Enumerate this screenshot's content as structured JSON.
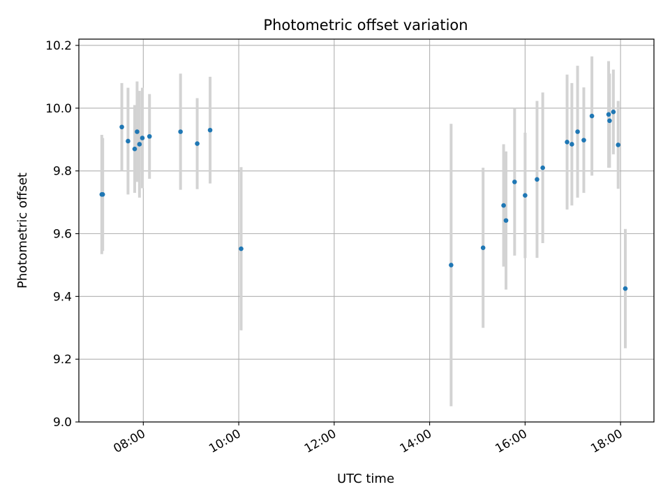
{
  "chart_data": {
    "type": "scatter",
    "title": "Photometric offset variation",
    "xlabel": "UTC time",
    "ylabel": "Photometric offset",
    "x_unit": "hours (UTC)",
    "xlim": [
      6.65,
      18.7
    ],
    "ylim": [
      9.0,
      10.22
    ],
    "x_ticks": [
      8,
      10,
      12,
      14,
      16,
      18
    ],
    "x_tick_labels": [
      "08:00",
      "10:00",
      "12:00",
      "14:00",
      "16:00",
      "18:00"
    ],
    "y_ticks": [
      9.0,
      9.2,
      9.4,
      9.6,
      9.8,
      10.0,
      10.2
    ],
    "y_tick_labels": [
      "9.0",
      "9.2",
      "9.4",
      "9.6",
      "9.8",
      "10.0",
      "10.2"
    ],
    "grid": true,
    "legend": "none",
    "marker_color": "#1f77b4",
    "errorbar_color": "#d3d3d3",
    "points": [
      {
        "x": 7.13,
        "y": 9.725,
        "err": 0.19
      },
      {
        "x": 7.15,
        "y": 9.725,
        "err": 0.18
      },
      {
        "x": 7.55,
        "y": 9.94,
        "err": 0.14
      },
      {
        "x": 7.68,
        "y": 9.895,
        "err": 0.17
      },
      {
        "x": 7.82,
        "y": 9.87,
        "err": 0.14
      },
      {
        "x": 7.87,
        "y": 9.925,
        "err": 0.16
      },
      {
        "x": 7.92,
        "y": 9.885,
        "err": 0.17
      },
      {
        "x": 7.98,
        "y": 9.905,
        "err": 0.16
      },
      {
        "x": 8.13,
        "y": 9.91,
        "err": 0.135
      },
      {
        "x": 8.78,
        "y": 9.925,
        "err": 0.185
      },
      {
        "x": 9.13,
        "y": 9.887,
        "err": 0.145
      },
      {
        "x": 9.4,
        "y": 9.93,
        "err": 0.17
      },
      {
        "x": 10.05,
        "y": 9.552,
        "err": 0.26
      },
      {
        "x": 14.45,
        "y": 9.5,
        "err": 0.45
      },
      {
        "x": 15.12,
        "y": 9.555,
        "err": 0.255
      },
      {
        "x": 15.55,
        "y": 9.69,
        "err": 0.195
      },
      {
        "x": 15.6,
        "y": 9.642,
        "err": 0.22
      },
      {
        "x": 15.78,
        "y": 9.765,
        "err": 0.235
      },
      {
        "x": 16.0,
        "y": 9.722,
        "err": 0.2
      },
      {
        "x": 16.25,
        "y": 9.773,
        "err": 0.25
      },
      {
        "x": 16.37,
        "y": 9.81,
        "err": 0.24
      },
      {
        "x": 16.88,
        "y": 9.892,
        "err": 0.215
      },
      {
        "x": 16.98,
        "y": 9.885,
        "err": 0.195
      },
      {
        "x": 17.1,
        "y": 9.925,
        "err": 0.21
      },
      {
        "x": 17.23,
        "y": 9.898,
        "err": 0.168
      },
      {
        "x": 17.4,
        "y": 9.975,
        "err": 0.19
      },
      {
        "x": 17.75,
        "y": 9.98,
        "err": 0.17
      },
      {
        "x": 17.77,
        "y": 9.96,
        "err": 0.15
      },
      {
        "x": 17.85,
        "y": 9.988,
        "err": 0.135
      },
      {
        "x": 17.95,
        "y": 9.883,
        "err": 0.14
      },
      {
        "x": 18.1,
        "y": 9.425,
        "err": 0.19
      }
    ]
  }
}
